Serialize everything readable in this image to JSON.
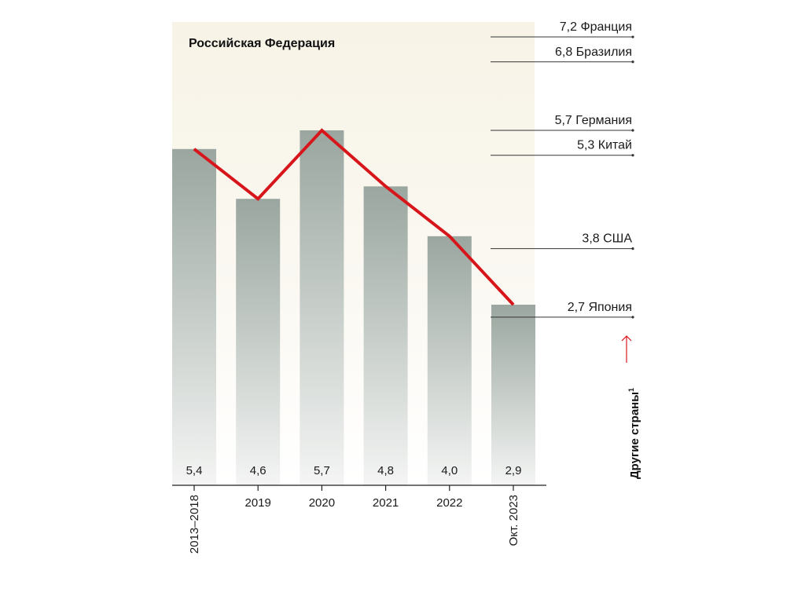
{
  "colors": {
    "panel_bg": "#f9f6ec",
    "bar_top": "#9aa69f",
    "bar_bottom": "#f4f5f4",
    "line": "#d7161b",
    "arrow": "#d7161b",
    "axis": "#222222"
  },
  "region_title": "Российская Федерация",
  "side_title": {
    "text": "Другие страны",
    "footnote": "1"
  },
  "chart_data": {
    "type": "bar",
    "title": "Российская Федерация",
    "categories": [
      "2013–2018",
      "2019",
      "2020",
      "2021",
      "2022",
      "Окт. 2023"
    ],
    "category_label_rotated": [
      true,
      false,
      false,
      false,
      false,
      true
    ],
    "values": [
      5.4,
      4.6,
      5.7,
      4.8,
      4.0,
      2.9
    ],
    "value_labels": [
      "5,4",
      "4,6",
      "5,7",
      "4,8",
      "4,0",
      "2,9"
    ],
    "line_series": {
      "values": [
        5.4,
        4.6,
        5.7,
        4.8,
        4.0,
        2.9
      ],
      "color": "#d7161b"
    },
    "ylim": [
      0,
      7.3
    ],
    "grid": false,
    "reference_values": [
      {
        "country": "Франция",
        "value": 7.2,
        "label": "7,2 Франция"
      },
      {
        "country": "Бразилия",
        "value": 6.8,
        "label": "6,8 Бразилия"
      },
      {
        "country": "Германия",
        "value": 5.7,
        "label": "5,7 Германия"
      },
      {
        "country": "Китай",
        "value": 5.3,
        "label": "5,3 Китай"
      },
      {
        "country": "США",
        "value": 3.8,
        "label": "3,8 США"
      },
      {
        "country": "Япония",
        "value": 2.7,
        "label": "2,7 Япония"
      }
    ]
  }
}
